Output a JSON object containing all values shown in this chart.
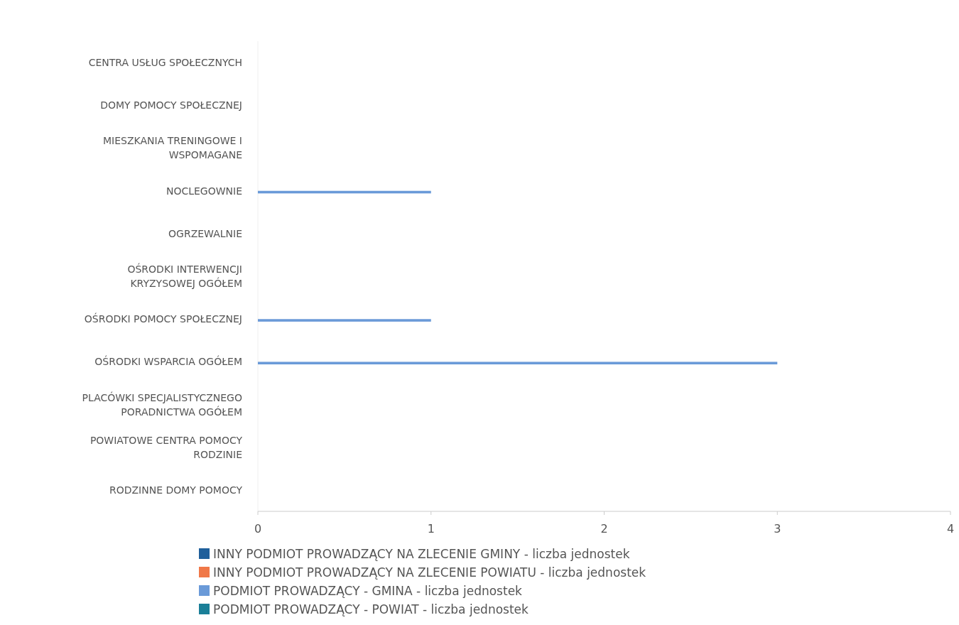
{
  "chart_data": {
    "type": "bar",
    "orientation": "horizontal",
    "categories": [
      "CENTRA USŁUG SPOŁECZNYCH",
      "DOMY POMOCY SPOŁECZNEJ",
      "MIESZKANIA TRENINGOWE I WSPOMAGANE",
      "NOCLEGOWNIE",
      "OGRZEWALNIE",
      "OŚRODKI INTERWENCJI KRYZYSOWEJ OGÓŁEM",
      "OŚRODKI POMOCY SPOŁECZNEJ",
      "OŚRODKI WSPARCIA OGÓŁEM",
      "PLACÓWKI SPECJALISTYCZNEGO PORADNICTWA OGÓŁEM",
      "POWIATOWE CENTRA POMOCY RODZINIE",
      "RODZINNE DOMY POMOCY"
    ],
    "series": [
      {
        "name": "INNY PODMIOT PROWADZĄCY NA ZLECENIE GMINY - liczba jednostek",
        "color": "#1f5f9b",
        "values": [
          null,
          null,
          null,
          null,
          null,
          null,
          null,
          null,
          null,
          null,
          null
        ]
      },
      {
        "name": "INNY PODMIOT PROWADZĄCY NA ZLECENIE POWIATU - liczba jednostek",
        "color": "#f07848",
        "values": [
          null,
          null,
          null,
          null,
          null,
          null,
          null,
          null,
          null,
          null,
          null
        ]
      },
      {
        "name": "PODMIOT PROWADZĄCY - GMINA - liczba jednostek",
        "color": "#6a9ad8",
        "values": [
          null,
          null,
          null,
          1,
          null,
          null,
          1,
          3,
          null,
          null,
          null
        ]
      },
      {
        "name": "PODMIOT PROWADZĄCY - POWIAT - liczba jednostek",
        "color": "#1a7f98",
        "values": [
          null,
          null,
          null,
          null,
          null,
          null,
          null,
          null,
          null,
          null,
          null
        ]
      }
    ],
    "xlim": [
      0,
      4
    ],
    "xticks": [
      0,
      1,
      2,
      3,
      4
    ],
    "legend": "bottom"
  }
}
